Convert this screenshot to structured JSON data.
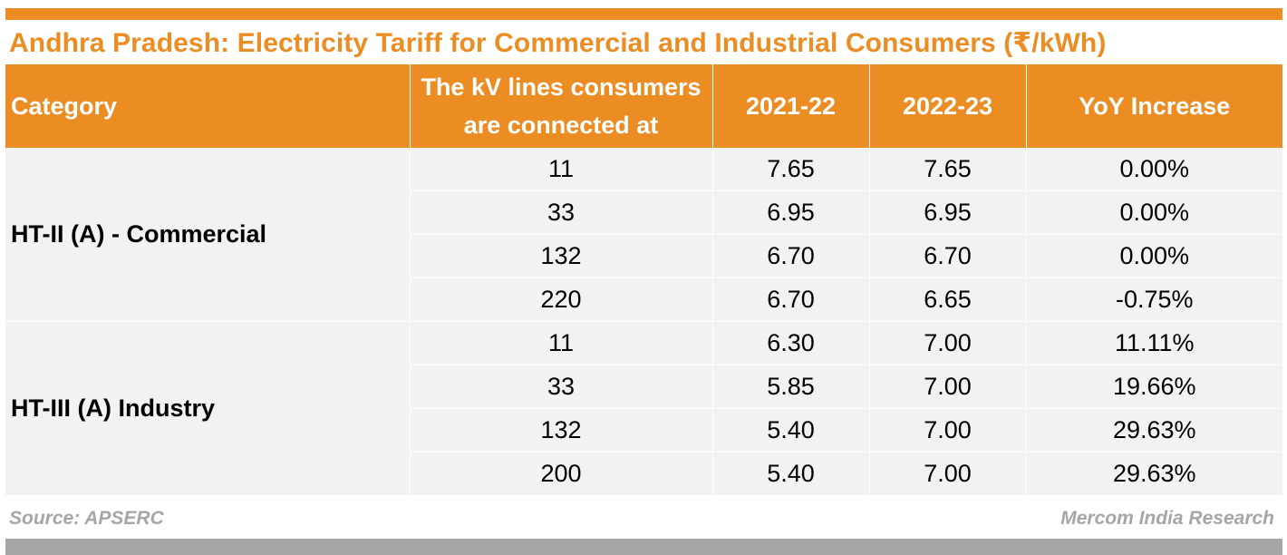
{
  "title": "Andhra Pradesh: Electricity Tariff for Commercial and Industrial Consumers (₹/kWh)",
  "colors": {
    "accent": "#ec8d24",
    "row_bg": "#f2f2f2",
    "footer_gray": "#a6a6a6"
  },
  "table": {
    "headers": {
      "category": "Category",
      "kv_line1": "The kV lines consumers",
      "kv_line2": "are connected at",
      "y2021": "2021-22",
      "y2022": "2022-23",
      "yoy": "YoY Increase"
    },
    "groups": [
      {
        "category": "HT-II (A) - Commercial",
        "rows": [
          {
            "kv": "11",
            "y2021": "7.65",
            "y2022": "7.65",
            "yoy": "0.00%"
          },
          {
            "kv": "33",
            "y2021": "6.95",
            "y2022": "6.95",
            "yoy": "0.00%"
          },
          {
            "kv": "132",
            "y2021": "6.70",
            "y2022": "6.70",
            "yoy": "0.00%"
          },
          {
            "kv": "220",
            "y2021": "6.70",
            "y2022": "6.65",
            "yoy": "-0.75%"
          }
        ]
      },
      {
        "category": "HT-III (A) Industry",
        "rows": [
          {
            "kv": "11",
            "y2021": "6.30",
            "y2022": "7.00",
            "yoy": "11.11%"
          },
          {
            "kv": "33",
            "y2021": "5.85",
            "y2022": "7.00",
            "yoy": "19.66%"
          },
          {
            "kv": "132",
            "y2021": "5.40",
            "y2022": "7.00",
            "yoy": "29.63%"
          },
          {
            "kv": "200",
            "y2021": "5.40",
            "y2022": "7.00",
            "yoy": "29.63%"
          }
        ]
      }
    ]
  },
  "footer": {
    "source": "Source: APSERC",
    "credit": "Mercom India Research"
  }
}
